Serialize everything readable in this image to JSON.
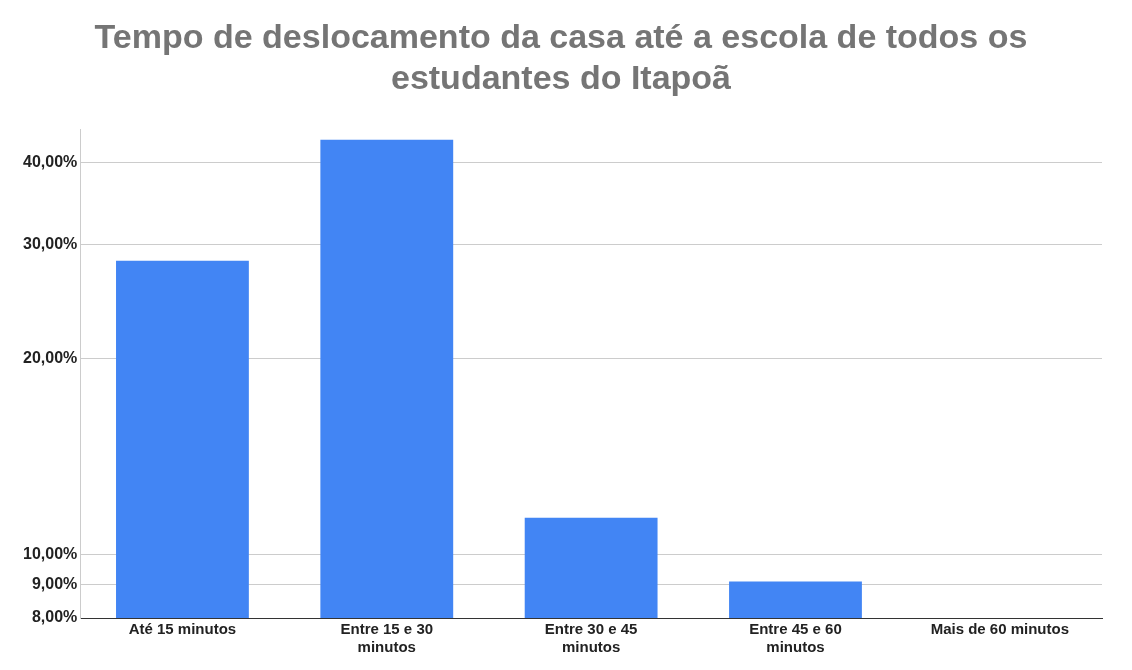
{
  "chart_data": {
    "type": "bar",
    "title": "Tempo de deslocamento da casa até a escola de todos os estudantes do Itapoã",
    "categories": [
      "Até 15 minutos",
      "Entre 15 e 30 minutos",
      "Entre 30 e 45 minutos",
      "Entre 45 e 60 minutos",
      "Mais de 60 minutos"
    ],
    "values": [
      28.3,
      43.4,
      11.4,
      9.1,
      null
    ],
    "color": "#4285f4",
    "log": true,
    "ylim": [
      8,
      45
    ],
    "yticks": [
      {
        "value": 8,
        "label": "8,00%"
      },
      {
        "value": 9,
        "label": "9,00%"
      },
      {
        "value": 10,
        "label": "10,00%"
      },
      {
        "value": 20,
        "label": "20,00%"
      },
      {
        "value": 30,
        "label": "30,00%"
      },
      {
        "value": 40,
        "label": "40,00%"
      }
    ],
    "grid": "y"
  }
}
